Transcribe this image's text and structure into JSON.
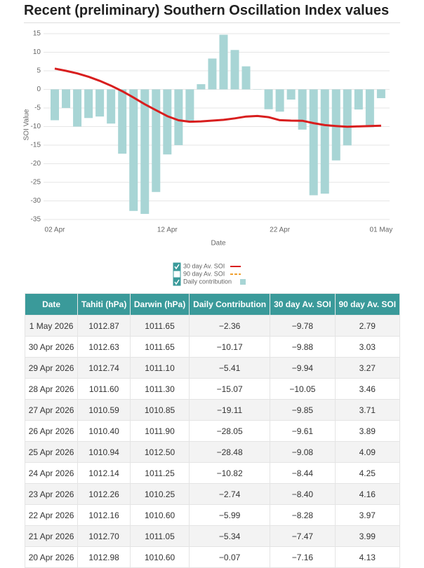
{
  "header": {
    "title": "Recent (preliminary) Southern Oscillation Index values"
  },
  "chart_data": {
    "type": "bar-line",
    "x_label": "Date",
    "y_label": "SOI Value",
    "categories": [
      "02 Apr",
      null,
      null,
      null,
      null,
      null,
      null,
      null,
      null,
      null,
      "12 Apr",
      null,
      null,
      null,
      null,
      null,
      null,
      null,
      null,
      null,
      "22 Apr",
      null,
      null,
      null,
      null,
      null,
      null,
      null,
      null,
      "01 May"
    ],
    "series": [
      {
        "name": "30 day Av. SOI",
        "kind": "line",
        "color": "#d81e1e",
        "checked": true,
        "values": [
          5.6,
          5.0,
          4.3,
          3.4,
          2.3,
          1.0,
          -0.5,
          -2.2,
          -4.0,
          -5.6,
          -7.2,
          -8.3,
          -8.7,
          -8.6,
          -8.4,
          -8.2,
          -7.8,
          -7.3,
          -7.16,
          -7.47,
          -8.28,
          -8.4,
          -8.44,
          -9.08,
          -9.61,
          -9.85,
          -10.05,
          -9.94,
          -9.88,
          -9.78
        ]
      },
      {
        "name": "90 day Av. SOI",
        "kind": "dashed",
        "color": "#f0a030",
        "checked": false
      },
      {
        "name": "Daily contribution",
        "kind": "bar",
        "color": "#a8d5d5",
        "checked": true,
        "values": [
          -8.3,
          -5.0,
          -10.0,
          -7.7,
          -7.3,
          -9.2,
          -17.3,
          -32.7,
          -33.5,
          -27.6,
          -17.5,
          -15.0,
          -8.6,
          1.4,
          8.3,
          14.7,
          10.6,
          6.2,
          -0.07,
          -5.34,
          -5.99,
          -2.74,
          -10.82,
          -28.48,
          -28.05,
          -19.11,
          -15.07,
          -5.41,
          -10.17,
          -2.36
        ]
      }
    ],
    "ylim": [
      -35,
      16.5
    ],
    "yticks": [
      -35,
      -30,
      -25,
      -20,
      -15,
      -10,
      -5,
      0,
      5,
      10,
      15
    ],
    "grid": true
  },
  "table": {
    "columns": [
      "Date",
      "Tahiti (hPa)",
      "Darwin (hPa)",
      "Daily Contribution",
      "30 day Av. SOI",
      "90 day Av. SOI"
    ],
    "rows": [
      [
        "1 May 2026",
        "1012.87",
        "1011.65",
        "−2.36",
        "−9.78",
        "2.79"
      ],
      [
        "30 Apr 2026",
        "1012.63",
        "1011.65",
        "−10.17",
        "−9.88",
        "3.03"
      ],
      [
        "29 Apr 2026",
        "1012.74",
        "1011.10",
        "−5.41",
        "−9.94",
        "3.27"
      ],
      [
        "28 Apr 2026",
        "1011.60",
        "1011.30",
        "−15.07",
        "−10.05",
        "3.46"
      ],
      [
        "27 Apr 2026",
        "1010.59",
        "1010.85",
        "−19.11",
        "−9.85",
        "3.71"
      ],
      [
        "26 Apr 2026",
        "1010.40",
        "1011.90",
        "−28.05",
        "−9.61",
        "3.89"
      ],
      [
        "25 Apr 2026",
        "1010.94",
        "1012.50",
        "−28.48",
        "−9.08",
        "4.09"
      ],
      [
        "24 Apr 2026",
        "1012.14",
        "1011.25",
        "−10.82",
        "−8.44",
        "4.25"
      ],
      [
        "23 Apr 2026",
        "1012.26",
        "1010.25",
        "−2.74",
        "−8.40",
        "4.16"
      ],
      [
        "22 Apr 2026",
        "1012.16",
        "1010.60",
        "−5.99",
        "−8.28",
        "3.97"
      ],
      [
        "21 Apr 2026",
        "1012.70",
        "1011.05",
        "−5.34",
        "−7.47",
        "3.99"
      ],
      [
        "20 Apr 2026",
        "1012.98",
        "1010.60",
        "−0.07",
        "−7.16",
        "4.13"
      ]
    ]
  }
}
